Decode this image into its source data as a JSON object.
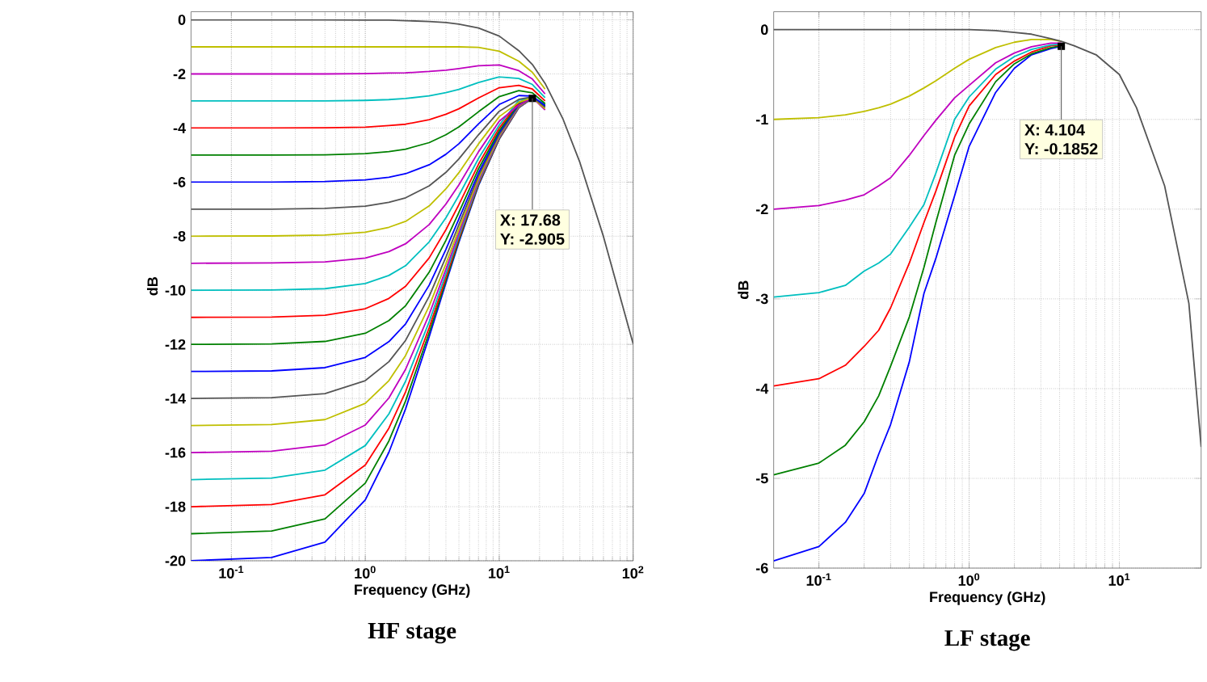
{
  "chart_data": [
    {
      "type": "line",
      "title": "HF stage",
      "xlabel": "Frequency (GHz)",
      "ylabel": "dB",
      "log": "x",
      "grid": true,
      "marker": "none",
      "line_style": "solid",
      "xlim": [
        0.05,
        100
      ],
      "ylim": [
        -20,
        0.3
      ],
      "xticks": [
        {
          "value": 0.1,
          "label": "10$^{-1}$"
        },
        {
          "value": 1,
          "label": "10$^{0}$"
        },
        {
          "value": 10,
          "label": "10$^{1}$"
        },
        {
          "value": 100,
          "label": "10$^{2}$"
        }
      ],
      "yticks": [
        -20,
        -18,
        -16,
        -14,
        -12,
        -10,
        -8,
        -6,
        -4,
        -2,
        0
      ],
      "annotations": [
        {
          "text": "X: 17.68",
          "x": 17.68,
          "y": -2.905
        },
        "Y: -2.905"
      ],
      "x": [
        0.05,
        0.2,
        0.5,
        1,
        1.5,
        2,
        3,
        4,
        5,
        7,
        10,
        14,
        17.68,
        22,
        30,
        40,
        60,
        100
      ],
      "series": [
        {
          "color": "#555555",
          "values": [
            0,
            0,
            0,
            -0.01,
            -0.01,
            -0.03,
            -0.06,
            -0.1,
            -0.16,
            -0.3,
            -0.6,
            -1.14,
            -1.65,
            -2.35,
            -3.68,
            -5.27,
            -8.01,
            -11.98
          ]
        },
        {
          "color": "#bfbf00",
          "values": [
            -1,
            -1,
            -1,
            -1,
            -1,
            -1,
            -1,
            -1,
            -1,
            -1.02,
            -1.16,
            -1.53,
            -1.94,
            -2.56,
            null,
            null,
            null,
            null
          ]
        },
        {
          "color": "#bf00bf",
          "values": [
            -2,
            -2,
            -2,
            -1.99,
            -1.97,
            -1.96,
            -1.91,
            -1.86,
            -1.8,
            -1.7,
            -1.67,
            -1.88,
            -2.19,
            -2.74,
            null,
            null,
            null,
            null
          ]
        },
        {
          "color": "#00bfbf",
          "values": [
            -3,
            -3,
            -3,
            -2.98,
            -2.95,
            -2.91,
            -2.81,
            -2.69,
            -2.57,
            -2.32,
            -2.11,
            -2.17,
            -2.39,
            -2.88,
            null,
            null,
            null,
            null
          ]
        },
        {
          "color": "#ff0000",
          "values": [
            -4,
            -4,
            -3.99,
            -3.97,
            -3.91,
            -3.86,
            -3.69,
            -3.49,
            -3.29,
            -2.89,
            -2.51,
            -2.42,
            -2.56,
            -3,
            null,
            null,
            null,
            null
          ]
        },
        {
          "color": "#008000",
          "values": [
            -5,
            -5,
            -4.99,
            -4.95,
            -4.87,
            -4.78,
            -4.54,
            -4.25,
            -3.96,
            -3.4,
            -2.84,
            -2.62,
            -2.7,
            -3.1,
            null,
            null,
            null,
            null
          ]
        },
        {
          "color": "#0000ff",
          "values": [
            -6,
            -6,
            -5.98,
            -5.92,
            -5.82,
            -5.69,
            -5.36,
            -4.97,
            -4.58,
            -3.85,
            -3.13,
            -2.8,
            -2.82,
            -3.17,
            null,
            null,
            null,
            null
          ]
        },
        {
          "color": "#555555",
          "values": [
            -7,
            -7,
            -6.97,
            -6.89,
            -6.75,
            -6.58,
            -6.14,
            -5.64,
            -5.14,
            -4.25,
            -3.38,
            -2.94,
            -2.85,
            -3.23,
            null,
            null,
            null,
            null
          ]
        },
        {
          "color": "#bfbf00",
          "values": [
            -8,
            -7.99,
            -7.96,
            -7.85,
            -7.67,
            -7.45,
            -6.88,
            -6.25,
            -5.65,
            -4.59,
            -3.58,
            -3.05,
            -2.87,
            -3.29,
            null,
            null,
            null,
            null
          ]
        },
        {
          "color": "#bf00bf",
          "values": [
            -9,
            -8.99,
            -8.95,
            -8.81,
            -8.57,
            -8.28,
            -7.57,
            -6.81,
            -6.1,
            -4.88,
            -3.75,
            -3.15,
            -2.88,
            -3.33,
            null,
            null,
            null,
            null
          ]
        },
        {
          "color": "#00bfbf",
          "values": [
            -10,
            -9.99,
            -9.94,
            -9.75,
            -9.45,
            -9.09,
            -8.21,
            -7.32,
            -6.49,
            -5.13,
            -3.89,
            -2.97,
            -2.89,
            -3.11,
            null,
            null,
            null,
            null
          ]
        },
        {
          "color": "#ff0000",
          "values": [
            -11,
            -10.99,
            -10.92,
            -10.68,
            -10.3,
            -9.85,
            -8.8,
            -7.76,
            -6.83,
            -5.34,
            -4,
            -3.04,
            -2.89,
            -3.13,
            null,
            null,
            null,
            null
          ]
        },
        {
          "color": "#008000",
          "values": [
            -12,
            -11.98,
            -11.89,
            -11.59,
            -11.12,
            -10.57,
            -9.33,
            -8.15,
            -7.12,
            -5.51,
            -4.1,
            -3.09,
            -2.9,
            -3.15,
            null,
            null,
            null,
            null
          ]
        },
        {
          "color": "#0000ff",
          "values": [
            -13,
            -12.98,
            -12.86,
            -12.48,
            -11.9,
            -11.24,
            -9.81,
            -8.49,
            -7.36,
            -5.66,
            -4.17,
            -3.13,
            -2.9,
            -3.17,
            null,
            null,
            null,
            null
          ]
        },
        {
          "color": "#555555",
          "values": [
            -14,
            -13.97,
            -13.82,
            -13.34,
            -12.64,
            -11.85,
            -10.22,
            -8.77,
            -7.57,
            -5.77,
            -4.23,
            -3.16,
            -2.9,
            -3.18,
            null,
            null,
            null,
            null
          ]
        },
        {
          "color": "#bfbf00",
          "values": [
            -15,
            -14.96,
            -14.78,
            -14.18,
            -13.34,
            -12.41,
            -10.58,
            -9.02,
            -7.74,
            -5.87,
            -4.28,
            -3.18,
            -2.9,
            -3.19,
            null,
            null,
            null,
            null
          ]
        },
        {
          "color": "#bf00bf",
          "values": [
            -16,
            -15.95,
            -15.72,
            -14.98,
            -13.98,
            -12.92,
            -10.89,
            -9.22,
            -7.88,
            -5.94,
            -4.32,
            -3.2,
            -2.9,
            -3.2,
            null,
            null,
            null,
            null
          ]
        },
        {
          "color": "#00bfbf",
          "values": [
            -17,
            -16.94,
            -16.65,
            -15.74,
            -14.57,
            -13.36,
            -11.16,
            -9.38,
            -7.99,
            -6,
            -4.35,
            -3.22,
            -2.9,
            -3.21,
            null,
            null,
            null,
            null
          ]
        },
        {
          "color": "#ff0000",
          "values": [
            -18,
            -17.92,
            -17.56,
            -16.46,
            -15.1,
            -13.75,
            -11.38,
            -9.52,
            -8.08,
            -6.05,
            -4.38,
            -3.23,
            -2.9,
            -3.21,
            null,
            null,
            null,
            null
          ]
        },
        {
          "color": "#008000",
          "values": [
            -19,
            -18.9,
            -18.45,
            -17.13,
            -15.57,
            -14.09,
            -11.56,
            -9.64,
            -8.16,
            -6.09,
            -4.4,
            -3.24,
            -2.9,
            -3.22,
            null,
            null,
            null,
            null
          ]
        },
        {
          "color": "#0000ff",
          "values": [
            -20,
            -19.88,
            -19.31,
            -17.75,
            -15.99,
            -14.38,
            -11.72,
            -9.73,
            -8.22,
            -6.13,
            -4.41,
            -3.25,
            -2.905,
            -3.22,
            null,
            null,
            null,
            null
          ]
        }
      ]
    },
    {
      "type": "line",
      "title": "LF stage",
      "xlabel": "Frequency (GHz)",
      "ylabel": "dB",
      "log": "x",
      "grid": true,
      "marker": "none",
      "line_style": "solid",
      "xlim": [
        0.05,
        35
      ],
      "ylim": [
        -6,
        0.2
      ],
      "xticks": [
        {
          "value": 0.1,
          "label": "10$^{-1}$"
        },
        {
          "value": 1,
          "label": "10$^{0}$"
        },
        {
          "value": 10,
          "label": "10$^{1}$"
        }
      ],
      "yticks": [
        -6,
        -5,
        -4,
        -3,
        -2,
        -1,
        0
      ],
      "annotations": [
        {
          "text": "X: 4.104",
          "x": 4.104,
          "y": -0.1852
        },
        "Y: -0.1852"
      ],
      "x": [
        0.05,
        0.1,
        0.15,
        0.2,
        0.25,
        0.3,
        0.4,
        0.5,
        0.6,
        0.8,
        1,
        1.5,
        2,
        2.6,
        3.5,
        4.104,
        5,
        7,
        10,
        13,
        20,
        29,
        35
      ],
      "series": [
        {
          "color": "#555555",
          "values": [
            0,
            0,
            0,
            0,
            0,
            0,
            0,
            0,
            0,
            0,
            0,
            -0.01,
            -0.03,
            -0.05,
            -0.1,
            -0.13,
            -0.18,
            -0.28,
            -0.5,
            -0.87,
            -1.74,
            -3.05,
            -4.65
          ]
        },
        {
          "color": "#bfbf00",
          "x": [
            0.05,
            0.1,
            0.15,
            0.2,
            0.25,
            0.3,
            0.4,
            0.5,
            0.6,
            0.8,
            1,
            1.5,
            2,
            2.6,
            3.5,
            4.104
          ],
          "values": [
            -1,
            -0.98,
            -0.95,
            -0.91,
            -0.87,
            -0.83,
            -0.74,
            -0.65,
            -0.57,
            -0.43,
            -0.33,
            -0.2,
            -0.14,
            -0.11,
            -0.11,
            -0.13
          ]
        },
        {
          "color": "#bf00bf",
          "x": [
            0.05,
            0.1,
            0.15,
            0.2,
            0.25,
            0.3,
            0.4,
            0.5,
            0.6,
            0.8,
            1,
            1.5,
            2,
            2.6,
            3.5,
            4.104
          ],
          "values": [
            -2,
            -1.96,
            -1.9,
            -1.84,
            -1.74,
            -1.65,
            -1.4,
            -1.18,
            -1.01,
            -0.76,
            -0.62,
            -0.37,
            -0.26,
            -0.19,
            -0.15,
            -0.15
          ]
        },
        {
          "color": "#00bfbf",
          "x": [
            0.05,
            0.1,
            0.15,
            0.2,
            0.25,
            0.3,
            0.4,
            0.5,
            0.6,
            0.8,
            1,
            1.5,
            2,
            2.6,
            3.5,
            4.104
          ],
          "values": [
            -2.98,
            -2.93,
            -2.85,
            -2.69,
            -2.6,
            -2.5,
            -2.2,
            -1.95,
            -1.6,
            -1,
            -0.75,
            -0.44,
            -0.3,
            -0.22,
            -0.17,
            -0.16
          ]
        },
        {
          "color": "#ff0000",
          "x": [
            0.05,
            0.1,
            0.15,
            0.2,
            0.25,
            0.3,
            0.4,
            0.5,
            0.6,
            0.8,
            1,
            1.5,
            2,
            2.6,
            3.5,
            4.104
          ],
          "values": [
            -3.97,
            -3.89,
            -3.74,
            -3.53,
            -3.35,
            -3.1,
            -2.6,
            -2.15,
            -1.8,
            -1.2,
            -0.85,
            -0.5,
            -0.35,
            -0.25,
            -0.18,
            -0.17
          ]
        },
        {
          "color": "#008000",
          "x": [
            0.05,
            0.1,
            0.15,
            0.2,
            0.25,
            0.3,
            0.4,
            0.5,
            0.6,
            0.8,
            1,
            1.5,
            2,
            2.6,
            3.5,
            4.104
          ],
          "values": [
            -4.96,
            -4.83,
            -4.63,
            -4.37,
            -4.08,
            -3.75,
            -3.2,
            -2.65,
            -2.15,
            -1.4,
            -1.05,
            -0.58,
            -0.38,
            -0.27,
            -0.2,
            -0.18
          ]
        },
        {
          "color": "#0000ff",
          "x": [
            0.05,
            0.1,
            0.15,
            0.2,
            0.25,
            0.3,
            0.4,
            0.5,
            0.6,
            0.8,
            1,
            1.5,
            2,
            2.6,
            3.5,
            4.104
          ],
          "values": [
            -5.92,
            -5.76,
            -5.49,
            -5.17,
            -4.73,
            -4.4,
            -3.7,
            -2.94,
            -2.55,
            -1.85,
            -1.3,
            -0.7,
            -0.43,
            -0.28,
            -0.21,
            -0.1852
          ]
        }
      ]
    }
  ]
}
